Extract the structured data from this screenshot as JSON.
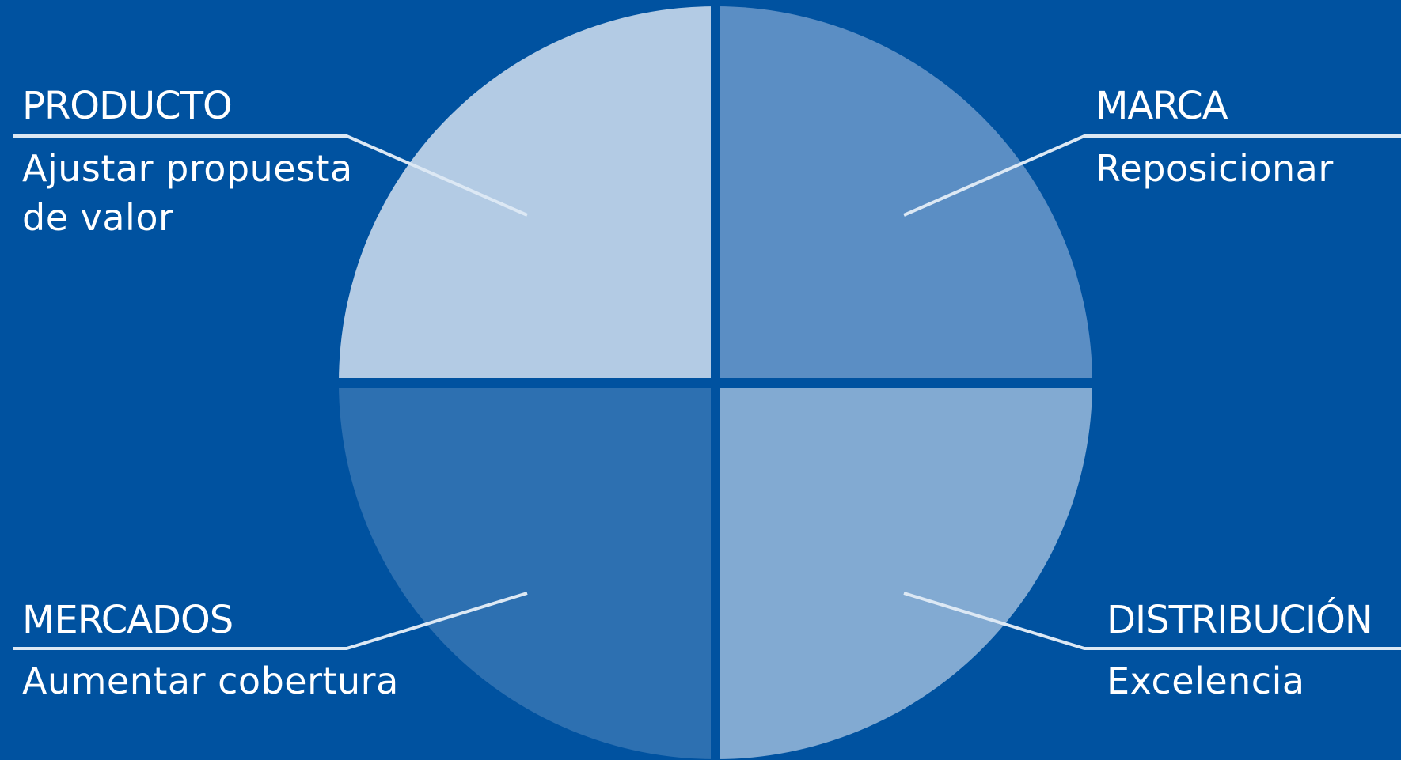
{
  "background_color": "#0052a0",
  "leader_line_color": "#dce8f4",
  "quadrants": [
    {
      "id": "producto",
      "title": "PRODUCTO",
      "description_lines": [
        "Ajustar propuesta",
        "de valor"
      ],
      "color": "#b3cbe4"
    },
    {
      "id": "marca",
      "title": "MARCA",
      "description_lines": [
        "Reposicionar"
      ],
      "color": "#5b8ec4"
    },
    {
      "id": "mercados",
      "title": "MERCADOS",
      "description_lines": [
        "Aumentar cobertura"
      ],
      "color": "#2d70b1"
    },
    {
      "id": "distribucion",
      "title": "DISTRIBUCIÓN",
      "description_lines": [
        "Excelencia"
      ],
      "color": "#82aad2"
    }
  ]
}
